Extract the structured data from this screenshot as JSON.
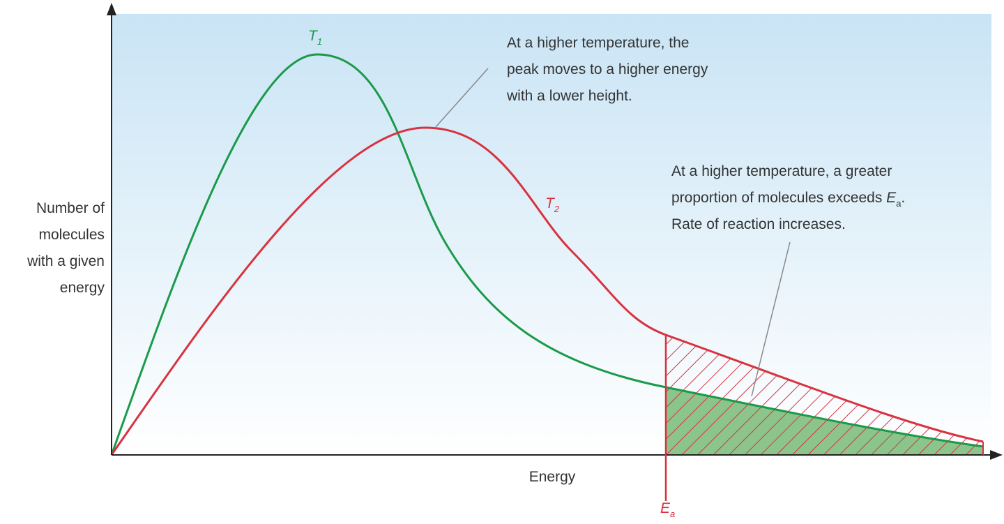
{
  "curves": [
    {
      "symbol": "T",
      "subscript": "1"
    },
    {
      "symbol": "T",
      "subscript": "2"
    }
  ],
  "axes": {
    "y_label_lines": [
      "Number of",
      "molecules",
      "with a given",
      "energy"
    ],
    "x_label": "Energy"
  },
  "activation_energy": {
    "symbol": "E",
    "subscript": "a"
  },
  "annotations": [
    {
      "lines": [
        "At a higher temperature, the",
        "peak moves to a higher energy",
        "with a lower height."
      ]
    },
    {
      "line1": "At a higher temperature, a greater",
      "line2": {
        "before": "proportion of molecules exceeds ",
        "symbol": "E",
        "subscript": "a",
        "after": "."
      },
      "line3": "Rate of reaction increases."
    }
  ]
}
